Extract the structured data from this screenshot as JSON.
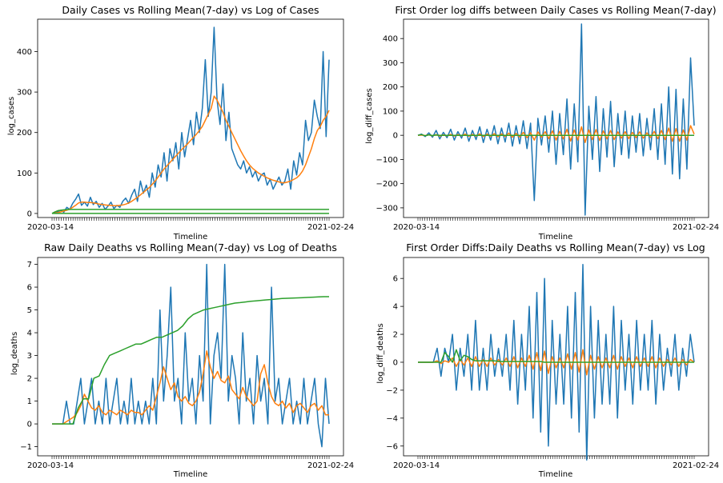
{
  "chart_data": [
    {
      "type": "line",
      "title": "Daily Cases vs Rolling Mean(7-day) vs Log of Cases",
      "xlabel": "Timeline",
      "ylabel": "log_cases",
      "ylim": [
        -10,
        480
      ],
      "yticks": [
        0,
        100,
        200,
        300,
        400
      ],
      "x_tick_labels": [
        "2020-03-14",
        "2021-02-24"
      ],
      "colors": [
        "#1f77b4",
        "#ff7f0e",
        "#2ca02c"
      ],
      "series": [
        {
          "values": [
            0,
            2,
            5,
            8,
            3,
            15,
            10,
            25,
            35,
            48,
            20,
            28,
            18,
            40,
            22,
            30,
            15,
            25,
            10,
            18,
            28,
            12,
            20,
            15,
            30,
            38,
            25,
            45,
            60,
            30,
            80,
            50,
            70,
            40,
            100,
            65,
            120,
            90,
            150,
            80,
            160,
            130,
            175,
            110,
            200,
            140,
            185,
            230,
            170,
            250,
            200,
            260,
            380,
            240,
            300,
            460,
            280,
            220,
            320,
            180,
            250,
            160,
            140,
            120,
            110,
            130,
            100,
            115,
            90,
            105,
            80,
            95,
            100,
            70,
            85,
            60,
            75,
            90,
            70,
            80,
            110,
            60,
            130,
            95,
            150,
            120,
            230,
            180,
            200,
            280,
            240,
            210,
            400,
            190,
            380
          ]
        },
        {
          "values": [
            0,
            1,
            2,
            4,
            6,
            8,
            11,
            15,
            20,
            26,
            28,
            28,
            27,
            27,
            26,
            25,
            23,
            22,
            21,
            20,
            20,
            19,
            19,
            20,
            21,
            23,
            26,
            30,
            35,
            40,
            46,
            52,
            58,
            64,
            72,
            80,
            90,
            100,
            110,
            118,
            126,
            134,
            142,
            150,
            158,
            165,
            172,
            180,
            188,
            196,
            205,
            215,
            230,
            245,
            260,
            290,
            280,
            265,
            250,
            230,
            215,
            200,
            185,
            170,
            155,
            142,
            130,
            120,
            112,
            106,
            100,
            96,
            92,
            88,
            85,
            82,
            80,
            78,
            76,
            76,
            78,
            80,
            84,
            88,
            95,
            105,
            120,
            140,
            160,
            185,
            205,
            215,
            230,
            240,
            255
          ]
        },
        {
          "values": [
            0,
            4,
            7,
            8,
            9,
            9.5,
            10,
            10,
            10,
            10,
            10,
            10,
            10,
            10,
            10,
            10,
            10,
            10,
            10,
            10,
            10,
            10,
            10,
            10,
            10,
            10,
            10,
            10,
            10,
            10,
            10,
            10,
            10,
            10,
            10,
            10,
            10,
            10,
            10,
            10,
            10,
            10,
            10,
            10,
            10,
            10,
            10,
            10,
            10,
            10,
            10,
            10,
            10,
            10,
            10,
            10,
            10,
            10,
            10,
            10,
            10,
            10,
            10,
            10,
            10,
            10,
            10,
            10,
            10,
            10,
            10,
            10,
            10,
            10,
            10,
            10,
            10,
            10,
            10,
            10,
            10,
            10,
            10,
            10,
            10,
            10,
            10,
            10,
            10,
            10,
            10,
            10,
            10,
            10,
            10
          ]
        },
        {
          "values": [
            0,
            0,
            0,
            0,
            0,
            0,
            0,
            0,
            0,
            0,
            0,
            0,
            0,
            0,
            0,
            0,
            0,
            0,
            0,
            0,
            0,
            0,
            0,
            0,
            0,
            0,
            0,
            0,
            0,
            0,
            0,
            0,
            0,
            0,
            0,
            0,
            0,
            0,
            0,
            0,
            0,
            0,
            0,
            0,
            0,
            0,
            0,
            0,
            0,
            0,
            0,
            0,
            0,
            0,
            0,
            0,
            0,
            0,
            0,
            0,
            0,
            0,
            0,
            0,
            0,
            0,
            0,
            0,
            0,
            0,
            0,
            0,
            0,
            0,
            0,
            0,
            0,
            0,
            0,
            0,
            0,
            0,
            0,
            0,
            0,
            0,
            0,
            0,
            0,
            0,
            0,
            0,
            0,
            0,
            0
          ],
          "color_index": 2
        }
      ]
    },
    {
      "type": "line",
      "title": "First Order log diffs between Daily Cases vs Rolling Mean(7-day)",
      "xlabel": "Timeline",
      "ylabel": "log_diff_cases",
      "ylim": [
        -340,
        480
      ],
      "yticks": [
        -300,
        -200,
        -100,
        0,
        100,
        200,
        300,
        400
      ],
      "x_tick_labels": [
        "2020-03-14",
        "2021-02-24"
      ],
      "colors": [
        "#1f77b4",
        "#ff7f0e",
        "#2ca02c"
      ],
      "series": [
        {
          "values": [
            0,
            5,
            -5,
            10,
            -8,
            20,
            -15,
            12,
            -10,
            25,
            -20,
            15,
            -12,
            30,
            -25,
            20,
            -18,
            35,
            -30,
            25,
            -20,
            40,
            -35,
            30,
            -28,
            50,
            -45,
            40,
            -35,
            60,
            -55,
            50,
            -270,
            70,
            -40,
            80,
            -70,
            100,
            -120,
            90,
            -80,
            150,
            -140,
            130,
            -110,
            460,
            -330,
            120,
            -100,
            160,
            -150,
            110,
            -90,
            140,
            -130,
            90,
            -80,
            100,
            -95,
            80,
            -70,
            90,
            -85,
            70,
            -60,
            110,
            -100,
            130,
            -120,
            200,
            -160,
            190,
            -180,
            150,
            -140,
            320,
            40
          ]
        },
        {
          "values": [
            0,
            1,
            -1,
            2,
            -2,
            3,
            -3,
            2,
            -2,
            4,
            -3,
            3,
            -2,
            5,
            -4,
            4,
            -3,
            6,
            -5,
            5,
            -4,
            7,
            -6,
            6,
            -5,
            9,
            -8,
            8,
            -7,
            12,
            -10,
            10,
            -20,
            14,
            -8,
            15,
            -14,
            18,
            -20,
            16,
            -15,
            25,
            -24,
            22,
            -20,
            35,
            -30,
            22,
            -18,
            24,
            -22,
            18,
            -15,
            20,
            -18,
            14,
            -12,
            15,
            -14,
            12,
            -10,
            14,
            -12,
            10,
            -9,
            16,
            -14,
            20,
            -18,
            30,
            -25,
            28,
            -25,
            22,
            -20,
            40,
            5
          ]
        },
        {
          "values": [
            0,
            3,
            -2,
            2,
            -1,
            1,
            0,
            0,
            0,
            0,
            0,
            0,
            0,
            0,
            0,
            0,
            0,
            0,
            0,
            0,
            0,
            0,
            0,
            0,
            0,
            0,
            0,
            0,
            0,
            0,
            0,
            0,
            0,
            0,
            0,
            0,
            0,
            0,
            0,
            0,
            0,
            0,
            0,
            0,
            0,
            0,
            0,
            0,
            0,
            0,
            0,
            0,
            0,
            0,
            0,
            0,
            0,
            0,
            0,
            0,
            0,
            0,
            0,
            0,
            0,
            0,
            0,
            0,
            0,
            0,
            0,
            0,
            0,
            0,
            0,
            0,
            0
          ]
        }
      ]
    },
    {
      "type": "line",
      "title": "Raw Daily Deaths vs Rolling Mean(7-day) vs Log of Deaths",
      "xlabel": "Timeline",
      "ylabel": "log_deaths",
      "ylim": [
        -1.4,
        7.3
      ],
      "yticks": [
        -1,
        0,
        1,
        2,
        3,
        4,
        5,
        6,
        7
      ],
      "x_tick_labels": [
        "2020-03-14",
        "2021-02-24"
      ],
      "colors": [
        "#1f77b4",
        "#ff7f0e",
        "#2ca02c"
      ],
      "series": [
        {
          "values": [
            0,
            0,
            0,
            0,
            1,
            0,
            0,
            1,
            2,
            0,
            1,
            2,
            0,
            1,
            0,
            2,
            0,
            1,
            2,
            0,
            1,
            0,
            2,
            0,
            1,
            0,
            1,
            0,
            2,
            0,
            5,
            1,
            3,
            6,
            1,
            2,
            0,
            4,
            1,
            2,
            0,
            3,
            1,
            7,
            0,
            3,
            4,
            2,
            7,
            1,
            3,
            2,
            0,
            4,
            1,
            2,
            0,
            3,
            1,
            2,
            0,
            6,
            1,
            2,
            0,
            1,
            2,
            0,
            1,
            0,
            2,
            0,
            1,
            2,
            0,
            -1,
            2,
            0
          ]
        },
        {
          "values": [
            0,
            0,
            0,
            0,
            0.1,
            0.2,
            0.3,
            0.5,
            0.8,
            1.3,
            1.0,
            0.7,
            0.6,
            0.8,
            0.5,
            0.4,
            0.6,
            0.5,
            0.4,
            0.6,
            0.5,
            0.4,
            0.6,
            0.5,
            0.5,
            0.4,
            0.6,
            0.8,
            0.6,
            1.2,
            1.8,
            2.5,
            2.0,
            1.5,
            1.8,
            1.2,
            1.0,
            1.2,
            0.9,
            0.8,
            1.0,
            1.4,
            2.2,
            3.2,
            2.5,
            2.0,
            2.3,
            1.9,
            1.8,
            2.1,
            1.5,
            1.3,
            1.1,
            1.6,
            1.2,
            1.0,
            0.8,
            1.0,
            2.2,
            2.6,
            1.8,
            1.2,
            0.9,
            0.8,
            1.0,
            0.7,
            0.9,
            0.5,
            0.8,
            0.9,
            0.7,
            0.5,
            0.8,
            0.9,
            0.6,
            0.8,
            0.4,
            0.4
          ]
        },
        {
          "values": [
            0,
            0,
            0,
            0,
            0,
            0.7,
            1.1,
            1.1,
            2.0,
            2.1,
            2.6,
            3.0,
            3.1,
            3.2,
            3.3,
            3.4,
            3.5,
            3.5,
            3.6,
            3.7,
            3.8,
            3.8,
            3.9,
            4.0,
            4.1,
            4.3,
            4.6,
            4.8,
            4.9,
            5.0,
            5.05,
            5.1,
            5.15,
            5.2,
            5.25,
            5.3,
            5.32,
            5.35,
            5.38,
            5.4,
            5.42,
            5.44,
            5.46,
            5.48,
            5.5,
            5.51,
            5.52,
            5.53,
            5.54,
            5.55,
            5.56,
            5.57,
            5.58,
            5.58
          ]
        }
      ]
    },
    {
      "type": "line",
      "title": "First Order Diffs:Daily Deaths vs Rolling Mean(7-day) vs Log",
      "xlabel": "Timeline",
      "ylabel": "log_diff_deaths",
      "ylim": [
        -6.7,
        7.5
      ],
      "yticks": [
        -6,
        -4,
        -2,
        0,
        2,
        4,
        6
      ],
      "x_tick_labels": [
        "2020-03-14",
        "2021-02-24"
      ],
      "colors": [
        "#1f77b4",
        "#ff7f0e",
        "#2ca02c"
      ],
      "series": [
        {
          "values": [
            0,
            0,
            0,
            0,
            0,
            1,
            -1,
            1,
            0,
            2,
            -2,
            1,
            -1,
            2,
            -2,
            3,
            -2,
            1,
            -2,
            2,
            -1,
            1,
            -1,
            2,
            -2,
            3,
            -3,
            2,
            -2,
            4,
            -4,
            5,
            -5,
            6,
            -6,
            3,
            -3,
            2,
            -3,
            4,
            -4,
            5,
            -5,
            7,
            -7,
            4,
            -4,
            3,
            -3,
            2,
            -3,
            4,
            -4,
            3,
            -2,
            2,
            -3,
            3,
            -2,
            2,
            -2,
            3,
            -3,
            2,
            -2,
            1,
            -1,
            2,
            -2,
            1,
            -1,
            2,
            0
          ]
        },
        {
          "values": [
            0,
            0,
            0,
            0,
            0,
            0.1,
            -0.1,
            0.1,
            0,
            0.3,
            -0.3,
            0.2,
            -0.2,
            0.3,
            -0.3,
            0.4,
            -0.3,
            0.2,
            -0.3,
            0.3,
            -0.2,
            0.2,
            -0.2,
            0.3,
            -0.3,
            0.4,
            -0.4,
            0.3,
            -0.3,
            0.5,
            -0.5,
            0.7,
            -0.6,
            0.8,
            -0.8,
            0.4,
            -0.4,
            0.3,
            -0.4,
            0.6,
            -0.5,
            0.7,
            -0.7,
            0.9,
            -0.9,
            0.5,
            -0.5,
            0.4,
            -0.4,
            0.3,
            -0.4,
            0.5,
            -0.5,
            0.4,
            -0.3,
            0.3,
            -0.4,
            0.4,
            -0.3,
            0.3,
            -0.3,
            0.4,
            -0.4,
            0.3,
            -0.3,
            0.2,
            -0.2,
            0.3,
            -0.3,
            0.2,
            -0.2,
            0.2,
            0
          ]
        },
        {
          "values": [
            0,
            0,
            0,
            0,
            0,
            0,
            0,
            0.7,
            0.4,
            0,
            0.9,
            0.1,
            0.5,
            0.4,
            0.2,
            0.1,
            0.1,
            0.1,
            0.1,
            0.1,
            0.1,
            0.05,
            0.05,
            0.05,
            0.05,
            0.05,
            0.05,
            0.05,
            0.05,
            0.05,
            0.05,
            0.05,
            0.05,
            0,
            0,
            0,
            0,
            0,
            0,
            0,
            0,
            0,
            0,
            0,
            0,
            0,
            0,
            0,
            0,
            0,
            0,
            0,
            0,
            0,
            0,
            0,
            0,
            0,
            0,
            0,
            0,
            0,
            0,
            0,
            0,
            0,
            0,
            0,
            0,
            0,
            0,
            0,
            0
          ]
        }
      ]
    }
  ]
}
